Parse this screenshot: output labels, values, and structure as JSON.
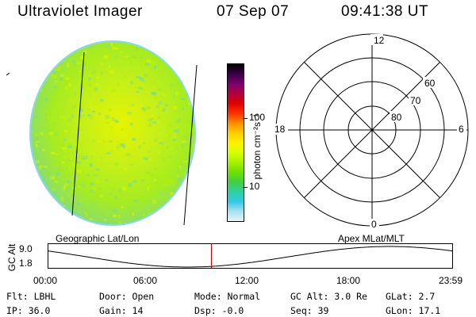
{
  "header": {
    "instrument": "Ultraviolet Imager",
    "date": "07 Sep 07",
    "time": "09:41:38 UT"
  },
  "colorbar": {
    "unit_label": "photon cm⁻²s⁻¹",
    "ticks": [
      "100",
      "10"
    ],
    "colors": [
      "#000000",
      "#3a0048",
      "#7a0070",
      "#b00040",
      "#e00000",
      "#ff3000",
      "#ff8a00",
      "#ffcc00",
      "#fff000",
      "#d8ff00",
      "#a8f000",
      "#70e000",
      "#40d040",
      "#30d0a0",
      "#30c8e8",
      "#a8e0f0",
      "#e8f4f8"
    ]
  },
  "image_panel": {
    "label": "Geographic Lat/Lon",
    "fill_colors": [
      "#b8f000",
      "#a6ec20",
      "#9ee63c",
      "#c8f018",
      "#e0f400",
      "#8ee070",
      "#70d8a8"
    ]
  },
  "polar_panel": {
    "label": "Apex MLat/MLT",
    "hour_labels": [
      "12",
      "18",
      "6",
      "0"
    ],
    "lat_labels": [
      "60",
      "70",
      "80"
    ]
  },
  "timeline": {
    "axis_label": "GC Alt",
    "y_ticks": [
      "9.0",
      "1.8"
    ],
    "x_ticks": [
      "00:00",
      "06:00",
      "12:00",
      "18:00",
      "23:59"
    ],
    "marker_color": "#cc0000",
    "marker_time_hours": 9.694
  },
  "info": {
    "filter": "Flt: LBHL",
    "ip": "IP: 36.0",
    "door": "Door: Open",
    "gain": "Gain: 14",
    "mode": "Mode: Normal",
    "dsp": "Dsp:   -0.0",
    "gc_alt": "GC Alt: 3.0 Re",
    "seq": "Seq: 39",
    "glat": "GLat:    2.7",
    "glon": "GLon:  17.1"
  }
}
